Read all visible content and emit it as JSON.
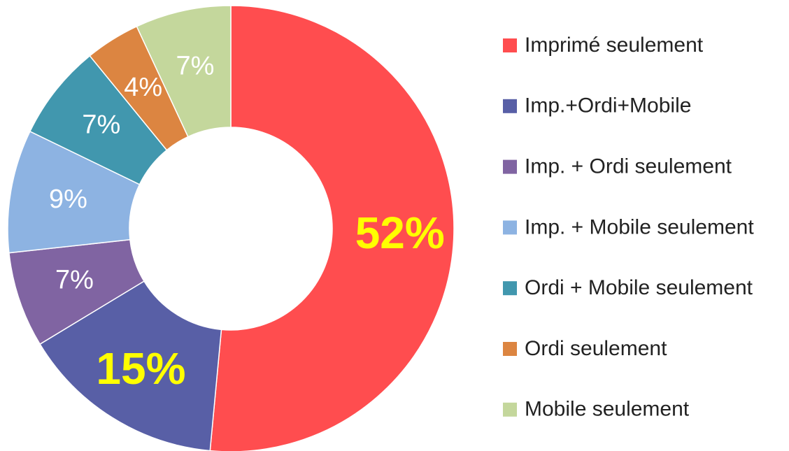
{
  "chart_data": {
    "type": "donut",
    "categories": [
      "Imprimé seulement",
      "Imp.+Ordi+Mobile",
      "Imp. + Ordi seulement",
      "Imp. + Mobile seulement",
      "Ordi + Mobile seulement",
      "Ordi seulement",
      "Mobile seulement"
    ],
    "values": [
      52,
      15,
      7,
      9,
      7,
      4,
      7
    ],
    "value_labels": [
      "52%",
      "15%",
      "7%",
      "9%",
      "7%",
      "4%",
      "7%"
    ],
    "colors": [
      "#ff4d4f",
      "#585fa6",
      "#8064a2",
      "#8db3e2",
      "#4197ae",
      "#dc8541",
      "#c4d79c"
    ],
    "value_label_colors": [
      "#ffff00",
      "#ffff00",
      "#ffffff",
      "#ffffff",
      "#ffffff",
      "#ffffff",
      "#ffffff"
    ],
    "legend": "right"
  }
}
